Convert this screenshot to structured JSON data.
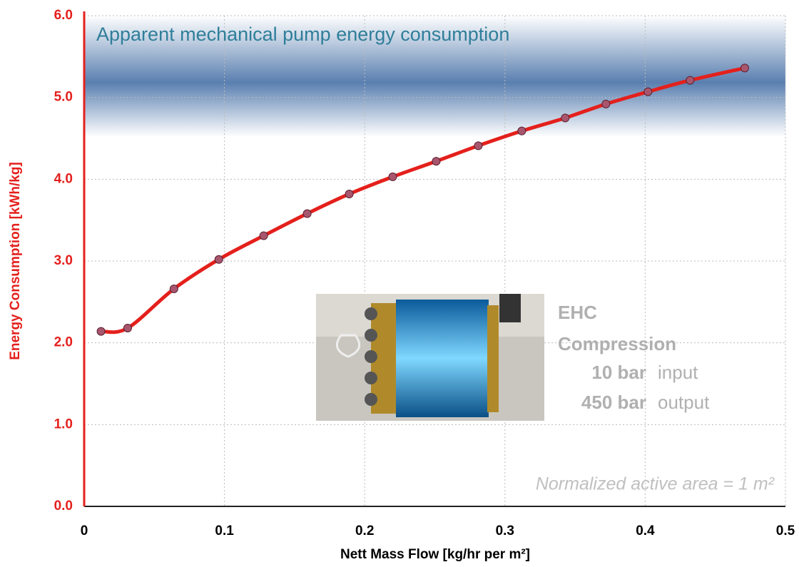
{
  "chart_data": {
    "type": "line",
    "title": "Apparent mechanical pump energy consumption",
    "x_label": "Nett Mass Flow [kg/hr per m²]",
    "y_label": "Energy Consumption [kWh/kg]",
    "annotation": "Normalized active area = 1 m²",
    "inset": {
      "title": "EHC",
      "subtitle": "Compression",
      "rows": [
        {
          "amount": "10 bar",
          "label": "input"
        },
        {
          "amount": "450 bar",
          "label": "output"
        }
      ]
    },
    "x": [
      0.012,
      0.031,
      0.064,
      0.096,
      0.128,
      0.159,
      0.189,
      0.22,
      0.251,
      0.281,
      0.312,
      0.343,
      0.372,
      0.402,
      0.432,
      0.471
    ],
    "values": [
      2.14,
      2.18,
      2.66,
      3.02,
      3.31,
      3.58,
      3.82,
      4.03,
      4.22,
      4.41,
      4.59,
      4.75,
      4.92,
      5.07,
      5.21,
      5.36
    ],
    "color": "#e4201c",
    "marker_color": "#a8566e",
    "xlim": [
      0,
      0.5
    ],
    "xticks": [
      0,
      0.1,
      0.2,
      0.3,
      0.4,
      0.5
    ],
    "ylim": [
      0,
      6
    ],
    "yticks": [
      {
        "value": 0,
        "label": "0.0"
      },
      {
        "value": 1,
        "label": "1.0"
      },
      {
        "value": 2,
        "label": "2.0"
      },
      {
        "value": 3,
        "label": "3.0"
      },
      {
        "value": 4,
        "label": "4.0"
      },
      {
        "value": 5,
        "label": "5.0"
      },
      {
        "value": 6,
        "label": "6.0"
      }
    ],
    "grid": true
  }
}
